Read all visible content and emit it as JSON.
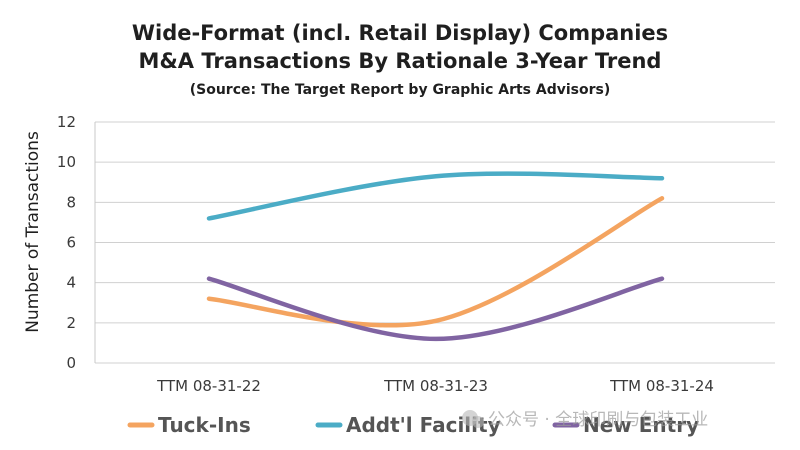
{
  "chart_data": {
    "type": "line",
    "title": [
      "Wide-Format (incl. Retail Display) Companies",
      "M&A Transactions By Rationale 3-Year Trend"
    ],
    "subtitle": "(Source: The Target Report by Graphic Arts Advisors)",
    "ylabel": "Number of Transactions",
    "xlabel": "",
    "ylim": [
      0,
      12
    ],
    "yticks": [
      "0",
      "2",
      "4",
      "6",
      "8",
      "10",
      "12"
    ],
    "categories": [
      "TTM 08-31-22",
      "TTM 08-31-23",
      "TTM 08-31-24"
    ],
    "grid": true,
    "legend_position": "bottom",
    "series": [
      {
        "name": "Tuck-Ins",
        "values": [
          3.2,
          2.1,
          8.2
        ],
        "color": "#f4a460"
      },
      {
        "name": "Addt'l Facility",
        "values": [
          7.2,
          9.3,
          9.2
        ],
        "color": "#4bacc6"
      },
      {
        "name": "New Entry",
        "values": [
          4.2,
          1.2,
          4.2
        ],
        "color": "#8064a2"
      }
    ]
  },
  "watermark": {
    "text": "公众号 · 全球印刷与包装工业",
    "icon": "wechat-icon"
  }
}
